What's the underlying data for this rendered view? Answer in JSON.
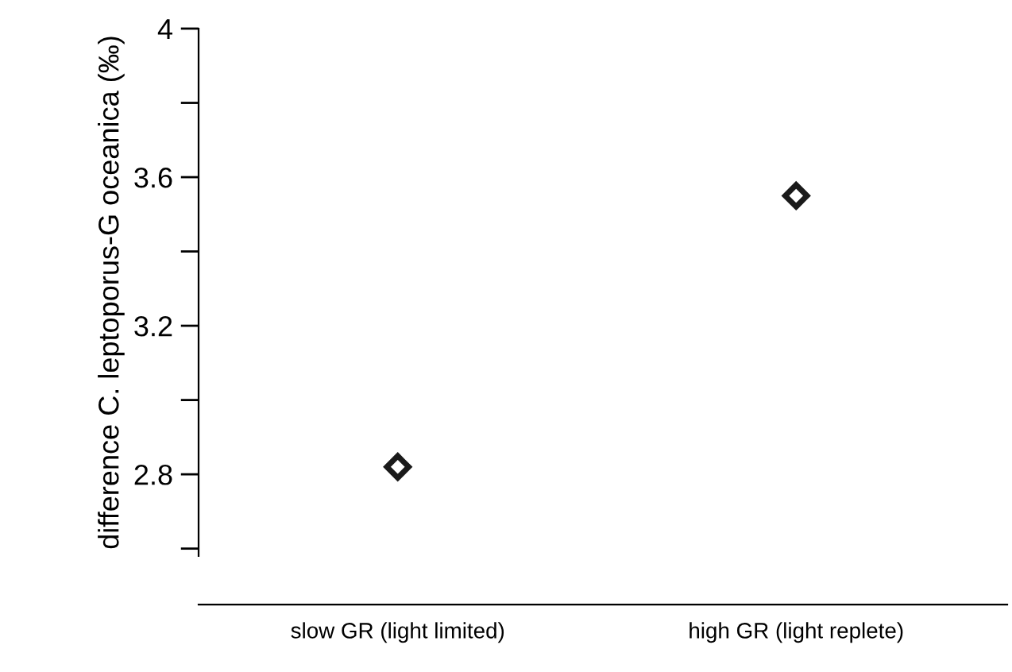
{
  "chart_data": {
    "type": "scatter",
    "ylabel": "difference C. leptoporus-G oceanica (‰)",
    "categories": [
      "slow GR (light limited)",
      "high GR (light replete)"
    ],
    "series": [
      {
        "color": "#1a1a1a",
        "values": [
          2.82,
          3.55
        ]
      }
    ],
    "marker": "diamond",
    "ylim": [
      2.58,
      4.0
    ],
    "yticks": [
      {
        "value": 2.6,
        "label": null
      },
      2.8,
      {
        "value": 3.0,
        "label": null
      },
      3.2,
      {
        "value": 3.4,
        "label": null
      },
      3.6,
      {
        "value": 3.8,
        "label": null
      },
      4
    ],
    "grid": false,
    "legend": false
  }
}
